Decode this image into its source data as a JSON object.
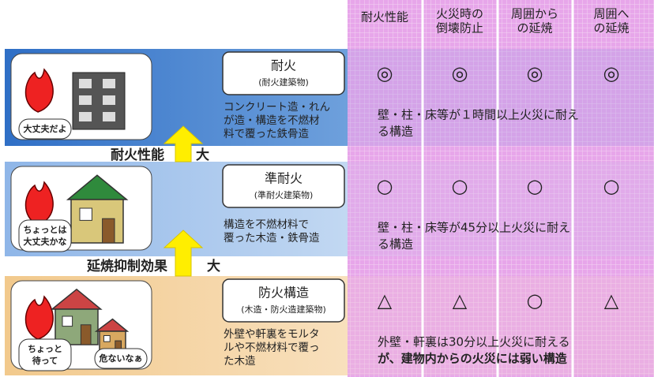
{
  "header": {
    "columns": [
      {
        "lines": [
          "耐火性能"
        ]
      },
      {
        "lines": [
          "火災時の",
          "倒壊防止"
        ]
      },
      {
        "lines": [
          "周囲から",
          "の延焼"
        ]
      },
      {
        "lines": [
          "周囲へ",
          "の延焼"
        ]
      }
    ]
  },
  "arrows": [
    {
      "label": "耐火性能",
      "size": "大"
    },
    {
      "label": "延焼抑制効果",
      "size": "大"
    }
  ],
  "rows": [
    {
      "title": "耐火",
      "subtitle": "(耐火建築物)",
      "speech": [
        [
          "大丈夫だよ"
        ]
      ],
      "description": [
        "コンクリート造・れん",
        "が造・構造を不燃材",
        "料で覆った鉄骨造"
      ],
      "symbols": [
        "◎",
        "◎",
        "◎",
        "◎"
      ],
      "note": [
        "壁・柱・床等が１時間以上火災に耐え",
        "る構造"
      ]
    },
    {
      "title": "準耐火",
      "subtitle": "(準耐火建築物)",
      "speech": [
        [
          "ちょっとは",
          "大丈夫かな"
        ]
      ],
      "description": [
        "構造を不燃材料で",
        "覆った木造・鉄骨造"
      ],
      "symbols": [
        "○",
        "○",
        "○",
        "○"
      ],
      "note": [
        "壁・柱・床等が45分以上火災に耐え",
        "る構造"
      ]
    },
    {
      "title": "防火構造",
      "subtitle": "(木造・防火造建築物)",
      "speech": [
        [
          "ちょっと",
          "待って"
        ],
        [
          "危ないなぁ"
        ]
      ],
      "description": [
        "外壁や軒裏をモルタ",
        "ルや不燃材料で覆っ",
        "た木造"
      ],
      "symbols": [
        "△",
        "△",
        "○",
        "△"
      ],
      "note": [
        "外壁・軒裏は30分以上火災に耐える",
        "が、建物内からの火災には弱い構造"
      ]
    }
  ]
}
